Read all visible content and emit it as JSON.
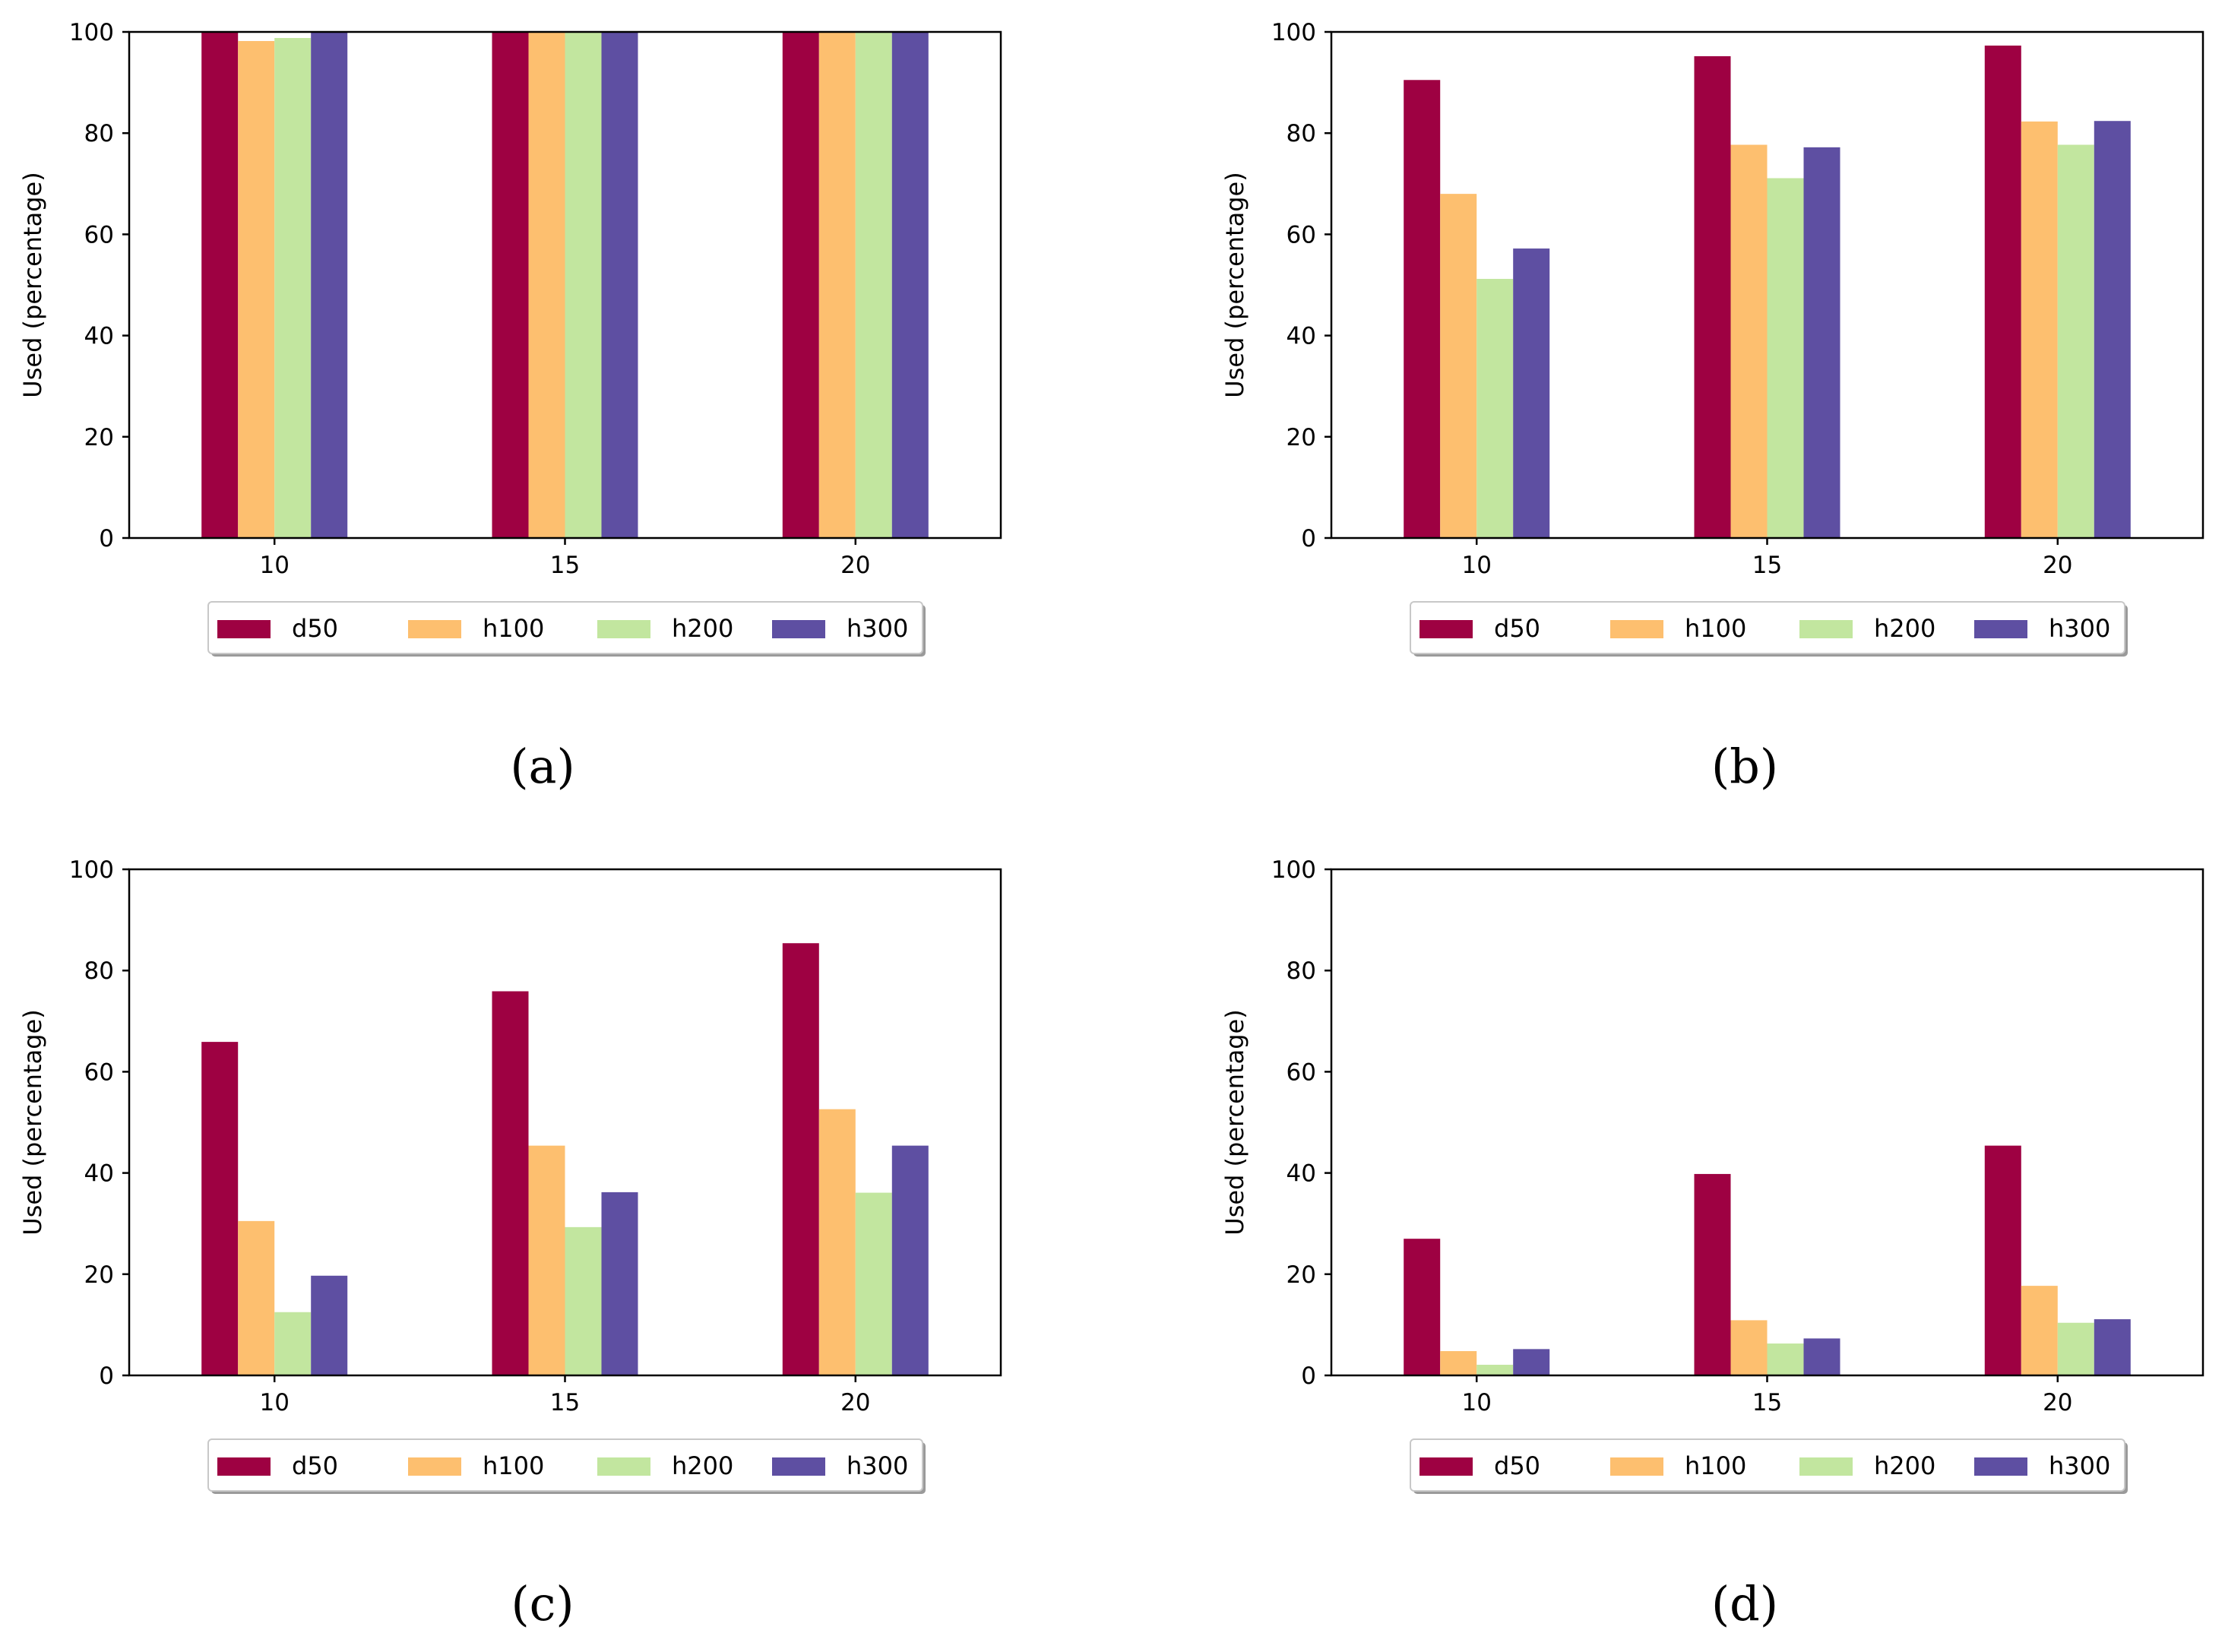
{
  "figure": {
    "colors": {
      "d50": "#9e0142",
      "h100": "#fdbf6f",
      "h200": "#c2e69f",
      "h300": "#5e4fa2",
      "axis": "#000000",
      "text": "#000000"
    }
  },
  "chart_data": [
    {
      "type": "bar",
      "panel": "a",
      "caption": "(a)",
      "categories": [
        "10",
        "15",
        "20"
      ],
      "ylabel": "Used (percentage)",
      "xlabel": "",
      "ylim": [
        0,
        100
      ],
      "yticks": [
        "0",
        "20",
        "40",
        "60",
        "80",
        "100"
      ],
      "legend_position": "bottom-center",
      "series": [
        {
          "name": "d50",
          "values": [
            100,
            100,
            100
          ]
        },
        {
          "name": "h100",
          "values": [
            98.2,
            100,
            100
          ]
        },
        {
          "name": "h200",
          "values": [
            98.8,
            100,
            100
          ]
        },
        {
          "name": "h300",
          "values": [
            100,
            100,
            100
          ]
        }
      ]
    },
    {
      "type": "bar",
      "panel": "b",
      "caption": "(b)",
      "categories": [
        "10",
        "15",
        "20"
      ],
      "ylabel": "Used (percentage)",
      "xlabel": "",
      "ylim": [
        0,
        100
      ],
      "yticks": [
        "0",
        "20",
        "40",
        "60",
        "80",
        "100"
      ],
      "legend_position": "bottom-center",
      "series": [
        {
          "name": "d50",
          "values": [
            90.5,
            95.2,
            97.3
          ]
        },
        {
          "name": "h100",
          "values": [
            68,
            77.7,
            82.3
          ]
        },
        {
          "name": "h200",
          "values": [
            51.2,
            71.1,
            77.7
          ]
        },
        {
          "name": "h300",
          "values": [
            57.2,
            77.2,
            82.4
          ]
        }
      ]
    },
    {
      "type": "bar",
      "panel": "c",
      "caption": "(c)",
      "categories": [
        "10",
        "15",
        "20"
      ],
      "ylabel": "Used (percentage)",
      "xlabel": "",
      "ylim": [
        0,
        100
      ],
      "yticks": [
        "0",
        "20",
        "40",
        "60",
        "80",
        "100"
      ],
      "legend_position": "bottom-center",
      "series": [
        {
          "name": "d50",
          "values": [
            65.9,
            75.9,
            85.4
          ]
        },
        {
          "name": "h100",
          "values": [
            30.5,
            45.4,
            52.6
          ]
        },
        {
          "name": "h200",
          "values": [
            12.5,
            29.3,
            36.1
          ]
        },
        {
          "name": "h300",
          "values": [
            19.7,
            36.2,
            45.4
          ]
        }
      ]
    },
    {
      "type": "bar",
      "panel": "d",
      "caption": "(d)",
      "categories": [
        "10",
        "15",
        "20"
      ],
      "ylabel": "Used (percentage)",
      "xlabel": "",
      "ylim": [
        0,
        100
      ],
      "yticks": [
        "0",
        "20",
        "40",
        "60",
        "80",
        "100"
      ],
      "legend_position": "bottom-center",
      "series": [
        {
          "name": "d50",
          "values": [
            27,
            39.8,
            45.4
          ]
        },
        {
          "name": "h100",
          "values": [
            4.8,
            10.9,
            17.7
          ]
        },
        {
          "name": "h200",
          "values": [
            2.1,
            6.3,
            10.4
          ]
        },
        {
          "name": "h300",
          "values": [
            5.2,
            7.3,
            11.1
          ]
        }
      ]
    }
  ]
}
